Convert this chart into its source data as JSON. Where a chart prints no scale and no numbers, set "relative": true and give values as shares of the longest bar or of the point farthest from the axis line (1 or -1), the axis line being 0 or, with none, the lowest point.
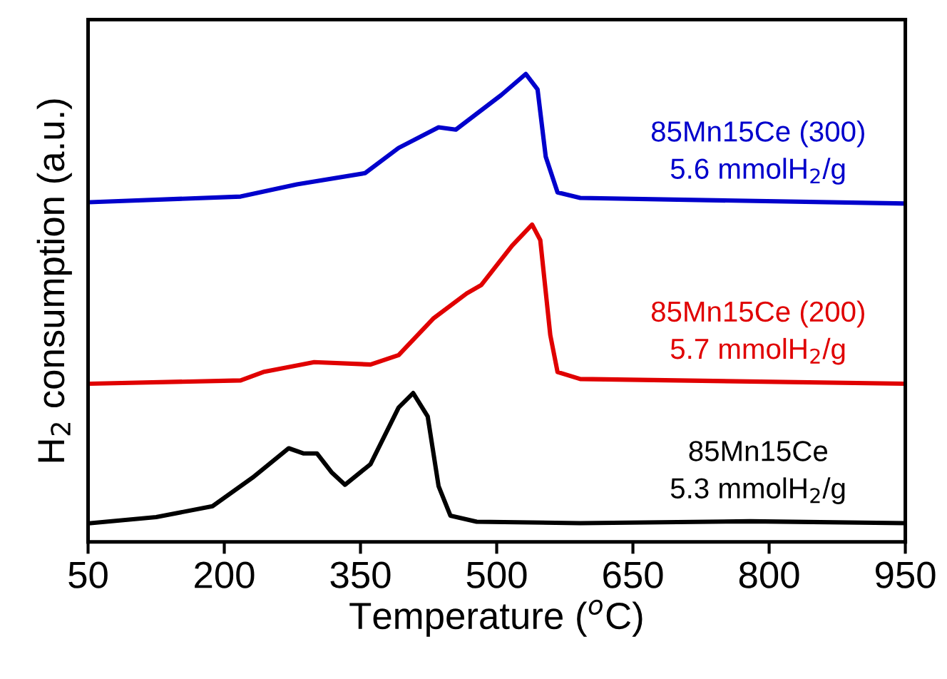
{
  "chart_data": {
    "type": "line",
    "relative": true,
    "xlabel": "Temperature ($^{o}$C)",
    "ylabel": "H$_{2}$ consumption (a.u.)",
    "xlim": [
      50,
      950
    ],
    "xticks": [
      50,
      200,
      350,
      500,
      650,
      800,
      950
    ],
    "grid": false,
    "legend": false,
    "marker": "none",
    "line_style": "solid",
    "tick_labels": "x",
    "series": [
      {
        "name": "85Mn15Ce (300)\n5.6 mmolH$_{2}$/g",
        "color": "#0000cc",
        "x": [
          53,
          218,
          280,
          355,
          392,
          436,
          455,
          505,
          532,
          545,
          554,
          567,
          592,
          950
        ],
        "values": [
          0.726,
          0.738,
          0.764,
          0.788,
          0.842,
          0.886,
          0.881,
          0.955,
          1.0,
          0.967,
          0.823,
          0.747,
          0.735,
          0.723
        ]
      },
      {
        "name": "85Mn15Ce (200)\n5.7 mmolH$_{2}$/g",
        "color": "#e00000",
        "x": [
          53,
          218,
          243,
          299,
          361,
          392,
          430,
          467,
          483,
          517,
          539,
          548,
          559,
          567,
          592,
          950
        ],
        "values": [
          0.338,
          0.345,
          0.363,
          0.384,
          0.379,
          0.399,
          0.477,
          0.531,
          0.549,
          0.633,
          0.678,
          0.645,
          0.442,
          0.363,
          0.348,
          0.338
        ]
      },
      {
        "name": "85Mn15Ce\n5.3 mmolH$_{2}$/g",
        "color": "#000000",
        "x": [
          53,
          125,
          187,
          231,
          271,
          287,
          302,
          318,
          333,
          361,
          392,
          408,
          424,
          436,
          449,
          478,
          592,
          779,
          950
        ],
        "values": [
          0.04,
          0.053,
          0.076,
          0.137,
          0.2,
          0.189,
          0.189,
          0.149,
          0.122,
          0.166,
          0.287,
          0.318,
          0.268,
          0.119,
          0.056,
          0.043,
          0.04,
          0.044,
          0.04
        ]
      }
    ]
  }
}
